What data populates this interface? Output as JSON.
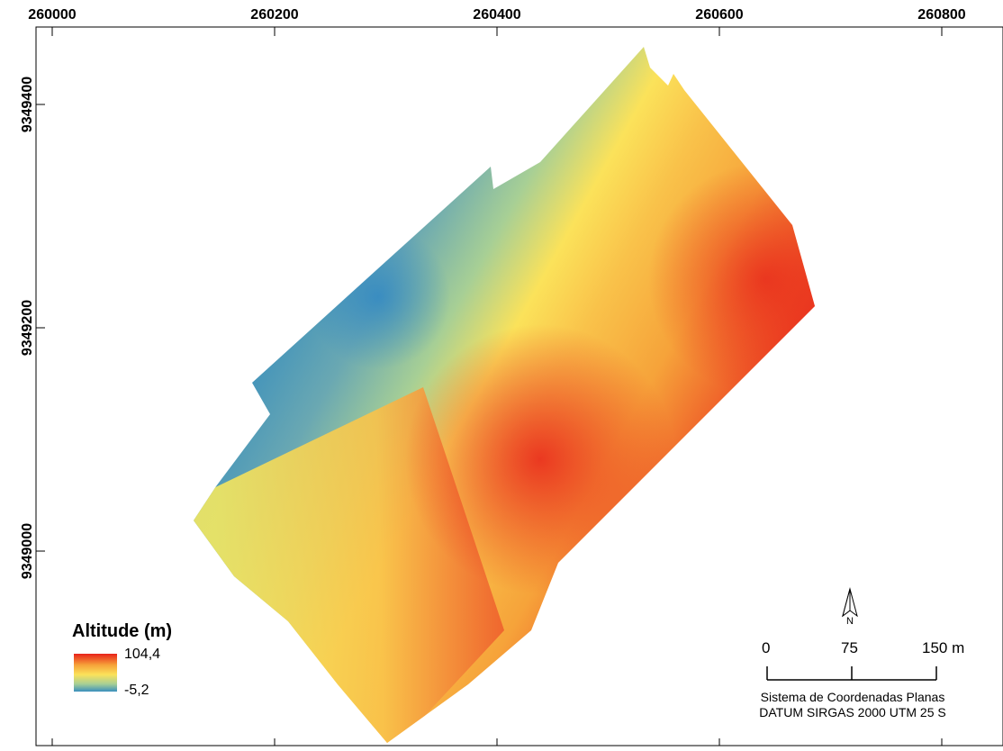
{
  "map": {
    "x_ticks": [
      "260000",
      "260200",
      "260400",
      "260600",
      "260800"
    ],
    "y_ticks": [
      "9349400",
      "9349200",
      "9349000"
    ],
    "colors": {
      "high": "#e8221a",
      "mid_high": "#f6a33a",
      "mid": "#fbe25a",
      "mid_low": "#a7cf95",
      "low": "#3a8fbd"
    }
  },
  "legend": {
    "title": "Altitude (m)",
    "max": "104,4",
    "min": "-5,2"
  },
  "north_arrow": {
    "label": "N",
    "icon": "north-arrow-icon"
  },
  "scale_bar": {
    "labels": [
      "0",
      "75",
      "150 m"
    ]
  },
  "crs": {
    "line1": "Sistema de Coordenadas Planas",
    "line2": "DATUM SIRGAS 2000 UTM 25 S"
  }
}
